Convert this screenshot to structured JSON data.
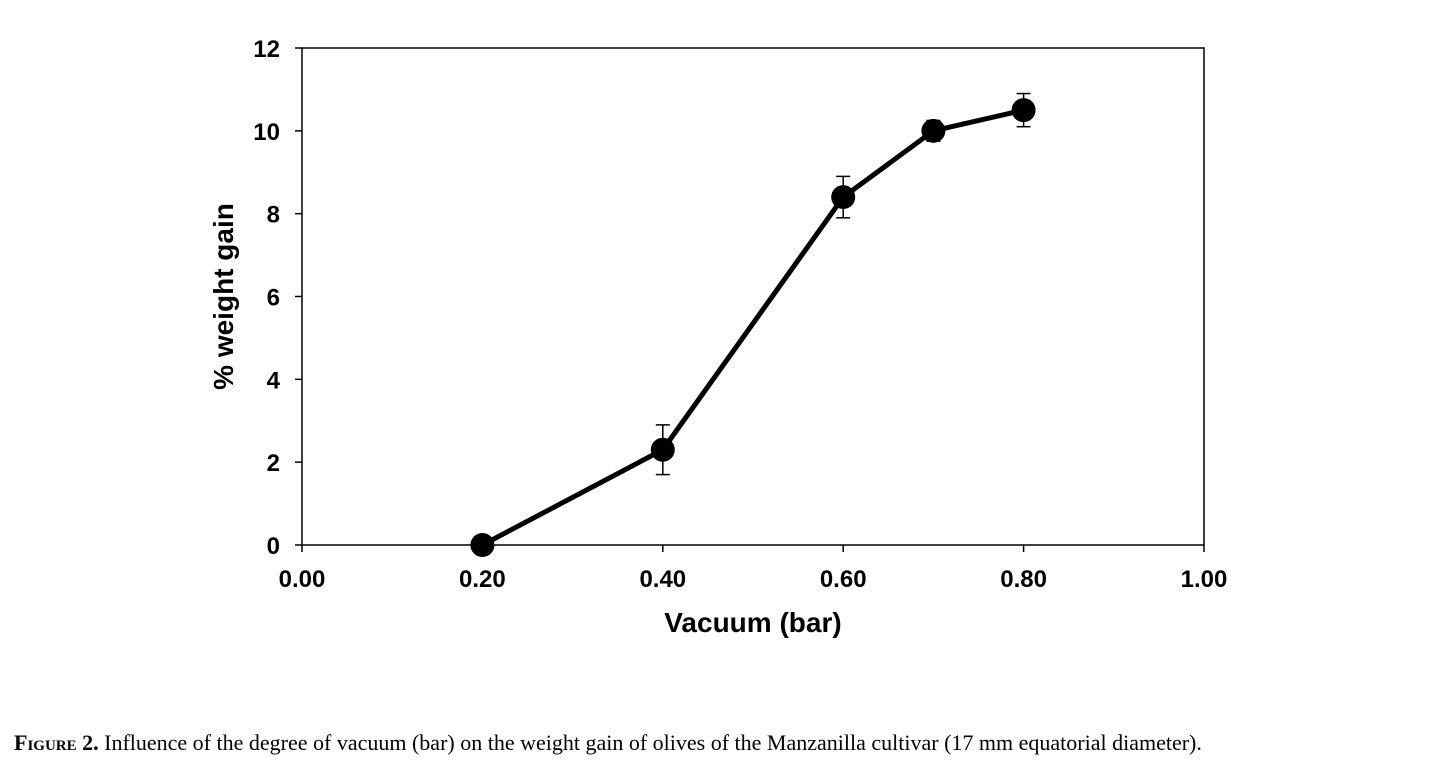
{
  "chart_data": {
    "type": "line",
    "title": "",
    "xlabel": "Vacuum (bar)",
    "ylabel": "% weight gain",
    "xlim": [
      0,
      1
    ],
    "ylim": [
      0,
      12
    ],
    "x_ticks": [
      "0.00",
      "0.20",
      "0.40",
      "0.60",
      "0.80",
      "1.00"
    ],
    "y_ticks": [
      "0",
      "2",
      "4",
      "6",
      "8",
      "10",
      "12"
    ],
    "grid": false,
    "legend": "none",
    "series": [
      {
        "x": [
          0.2,
          0.4,
          0.6,
          0.7,
          0.8
        ],
        "y": [
          0.0,
          2.3,
          8.4,
          10.0,
          10.5
        ],
        "error": [
          0.0,
          0.6,
          0.5,
          0.25,
          0.4
        ],
        "color": "#000000",
        "marker": "circle"
      }
    ]
  },
  "caption": {
    "label": "Figure 2.",
    "text": " Influence of the degree of vacuum (bar) on the weight gain of olives of the Manzanilla cultivar (17 mm equatorial diameter)."
  }
}
